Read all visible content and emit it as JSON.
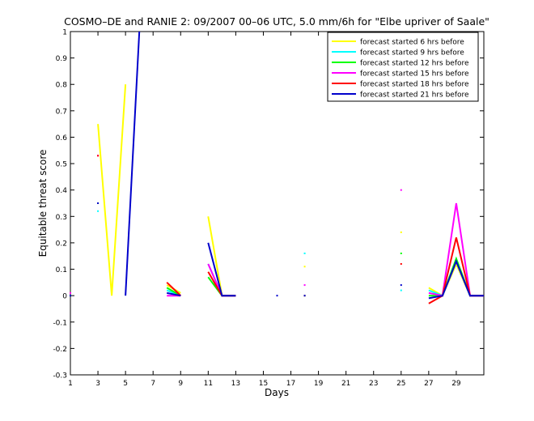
{
  "chart_data": {
    "type": "line",
    "title": "COSMO–DE and RANIE 2: 09/2007 00–06 UTC, 5.0 mm/6h for \"Elbe upriver of Saale\"",
    "xlabel": "Days",
    "ylabel": "Equitable threat score",
    "xlim": [
      1,
      31
    ],
    "ylim": [
      -0.3,
      1
    ],
    "xticks": [
      "1",
      "3",
      "5",
      "7",
      "9",
      "11",
      "13",
      "15",
      "17",
      "19",
      "21",
      "23",
      "25",
      "27",
      "29"
    ],
    "yticks": [
      "-0.3",
      "-0.2",
      "-0.1",
      "0",
      "0.1",
      "0.2",
      "0.3",
      "0.4",
      "0.5",
      "0.6",
      "0.7",
      "0.8",
      "0.9",
      "1"
    ],
    "grid": false,
    "legend_position": "top-right",
    "series": [
      {
        "name": "forecast started 6 hrs before",
        "color": "#ffff00",
        "points": [
          [
            1,
            0.01
          ],
          [
            3,
            0.65
          ],
          [
            4,
            0.0
          ],
          [
            5,
            0.8
          ],
          [
            8,
            0.04
          ],
          [
            9,
            0.01
          ],
          [
            11,
            0.3
          ],
          [
            12,
            0.0
          ],
          [
            13,
            0.0
          ],
          [
            18,
            0.11
          ],
          [
            25,
            0.24
          ],
          [
            27,
            0.03
          ],
          [
            28,
            0.0
          ],
          [
            29,
            0.12
          ],
          [
            30,
            0.0
          ],
          [
            31,
            0.0
          ]
        ]
      },
      {
        "name": "forecast started 9 hrs before",
        "color": "#00ffff",
        "points": [
          [
            1,
            0.0
          ],
          [
            3,
            0.32
          ],
          [
            8,
            0.02
          ],
          [
            9,
            0.0
          ],
          [
            11,
            0.12
          ],
          [
            12,
            0.0
          ],
          [
            13,
            0.0
          ],
          [
            18,
            0.16
          ],
          [
            25,
            0.02
          ],
          [
            27,
            0.02
          ],
          [
            28,
            0.0
          ],
          [
            29,
            0.13
          ],
          [
            30,
            0.0
          ],
          [
            31,
            0.0
          ]
        ]
      },
      {
        "name": "forecast started 12 hrs before",
        "color": "#00ff00",
        "points": [
          [
            1,
            0.0
          ],
          [
            3,
            0.35
          ],
          [
            8,
            0.03
          ],
          [
            9,
            0.0
          ],
          [
            11,
            0.07
          ],
          [
            12,
            0.0
          ],
          [
            13,
            0.0
          ],
          [
            18,
            0.0
          ],
          [
            25,
            0.16
          ],
          [
            27,
            0.0
          ],
          [
            28,
            0.0
          ],
          [
            29,
            0.14
          ],
          [
            30,
            0.0
          ],
          [
            31,
            0.0
          ]
        ]
      },
      {
        "name": "forecast started 15 hrs before",
        "color": "#ff00ff",
        "points": [
          [
            1,
            0.01
          ],
          [
            3,
            0.53
          ],
          [
            8,
            0.0
          ],
          [
            9,
            0.0
          ],
          [
            11,
            0.12
          ],
          [
            12,
            0.0
          ],
          [
            13,
            0.0
          ],
          [
            18,
            0.04
          ],
          [
            25,
            0.4
          ],
          [
            27,
            0.01
          ],
          [
            28,
            0.0
          ],
          [
            29,
            0.35
          ],
          [
            30,
            0.0
          ],
          [
            31,
            0.0
          ]
        ]
      },
      {
        "name": "forecast started 18 hrs before",
        "color": "#ff0000",
        "points": [
          [
            1,
            0.0
          ],
          [
            3,
            0.53
          ],
          [
            8,
            0.05
          ],
          [
            9,
            0.0
          ],
          [
            11,
            0.09
          ],
          [
            12,
            0.0
          ],
          [
            13,
            0.0
          ],
          [
            18,
            0.0
          ],
          [
            25,
            0.12
          ],
          [
            27,
            -0.03
          ],
          [
            28,
            0.0
          ],
          [
            29,
            0.22
          ],
          [
            30,
            0.0
          ],
          [
            31,
            0.0
          ]
        ]
      },
      {
        "name": "forecast started 21 hrs before",
        "color": "#0000cc",
        "points": [
          [
            1,
            0.0
          ],
          [
            3,
            0.35
          ],
          [
            5,
            0.0
          ],
          [
            6,
            1.0
          ],
          [
            8,
            0.01
          ],
          [
            9,
            0.0
          ],
          [
            11,
            0.2
          ],
          [
            12,
            0.0
          ],
          [
            13,
            0.0
          ],
          [
            16,
            0.0
          ],
          [
            18,
            0.0
          ],
          [
            25,
            0.04
          ],
          [
            27,
            -0.01
          ],
          [
            28,
            0.0
          ],
          [
            29,
            0.13
          ],
          [
            30,
            0.0
          ],
          [
            31,
            0.0
          ]
        ]
      }
    ]
  }
}
